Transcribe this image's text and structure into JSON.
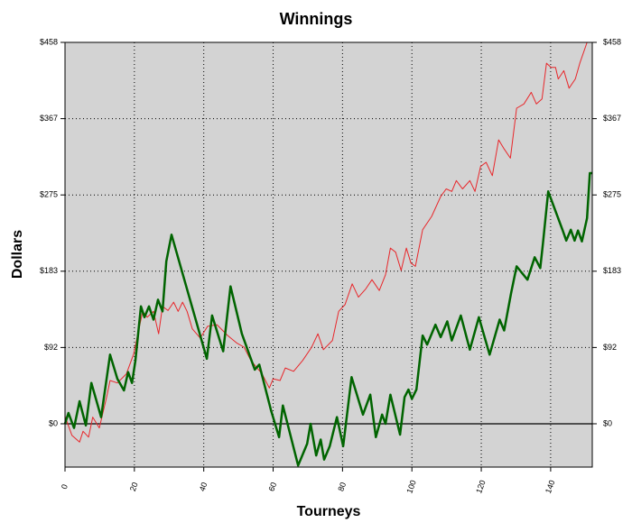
{
  "chart_data": {
    "type": "line",
    "title": "Winnings",
    "x_label": "Tourneys",
    "y_label": "Dollars",
    "xlim": [
      0,
      152
    ],
    "xticks": [
      0,
      20,
      40,
      60,
      80,
      100,
      120,
      140
    ],
    "ylim": [
      -52,
      458
    ],
    "yticks": [
      {
        "value": 0,
        "label": "$0"
      },
      {
        "value": 91.6,
        "label": "$92"
      },
      {
        "value": 183.2,
        "label": "$183"
      },
      {
        "value": 274.8,
        "label": "$275"
      },
      {
        "value": 366.4,
        "label": "$367"
      },
      {
        "value": 458,
        "label": "$458"
      }
    ],
    "grid": true,
    "background": "#d3d3d3",
    "series": [
      {
        "color": "#e8262a",
        "width": 1,
        "x": [
          0,
          2,
          4.2,
          5.2,
          6.8,
          8,
          9.9,
          12,
          13,
          15.1,
          17.7,
          19.8,
          21,
          22.4,
          23.7,
          25.5,
          27,
          28.1,
          29.7,
          31.3,
          32.6,
          33.9,
          35.2,
          36.7,
          39,
          41.1,
          43.8,
          46.9,
          49.5,
          51.6,
          53.6,
          56.8,
          58.9,
          60,
          62,
          63.5,
          65.9,
          68.5,
          71.1,
          72.9,
          74.5,
          77.1,
          78.9,
          80.7,
          82.8,
          84.6,
          86.7,
          88.5,
          90.6,
          92.4,
          93.8,
          95.3,
          96.9,
          98.4,
          99.7,
          101,
          103.1,
          105.7,
          108.3,
          109.9,
          111.5,
          112.8,
          114.6,
          116.7,
          118.2,
          119.8,
          121.4,
          123.2,
          125,
          126.6,
          128.4,
          130.2,
          132.3,
          134.4,
          135.9,
          137.5,
          138.8,
          140.1,
          141.4,
          142.2,
          143.8,
          145.3,
          147.1,
          148.4,
          150.5,
          152
        ],
        "values": [
          9,
          -14,
          -22,
          -9,
          -16,
          8,
          -5,
          32,
          52,
          49,
          60,
          84,
          108,
          135,
          128,
          135,
          108,
          141,
          136,
          146,
          135,
          146,
          135,
          114,
          103,
          117,
          119,
          106,
          97,
          92,
          76,
          60,
          43,
          54,
          52,
          67,
          63,
          76,
          92,
          108,
          89,
          100,
          135,
          143,
          168,
          152,
          162,
          173,
          160,
          179,
          211,
          206,
          184,
          211,
          193,
          189,
          233,
          249,
          273,
          282,
          279,
          292,
          282,
          292,
          279,
          309,
          314,
          298,
          341,
          330,
          319,
          379,
          384,
          398,
          384,
          390,
          433,
          428,
          428,
          414,
          424,
          403,
          414,
          433,
          458,
          458
        ]
      },
      {
        "color": "#006400",
        "width": 2.5,
        "x": [
          0,
          1,
          2.6,
          4.2,
          6,
          7.6,
          10.4,
          13,
          15.1,
          17,
          18.2,
          19.3,
          20.3,
          21.9,
          22.9,
          24.2,
          25.5,
          26.8,
          28.1,
          29.2,
          30.7,
          40.9,
          42.4,
          45.6,
          47.7,
          51,
          54.7,
          56,
          59.4,
          61.7,
          62.8,
          67.2,
          69.8,
          70.8,
          72.4,
          73.7,
          74.7,
          76.3,
          78.4,
          80.2,
          82.6,
          85.9,
          88,
          89.6,
          91.4,
          92.4,
          93.8,
          96.6,
          97.9,
          99,
          100,
          101.3,
          103.1,
          104.4,
          106.8,
          108.3,
          110.2,
          111.5,
          114.1,
          116.7,
          119.3,
          122.4,
          125.3,
          126.6,
          128.6,
          130.2,
          133.3,
          135.4,
          137,
          137.8,
          139.3,
          143.5,
          144.5,
          145.8,
          146.9,
          147.9,
          149,
          150.5,
          151.3,
          152
        ],
        "values": [
          0,
          13,
          -5,
          27,
          -2,
          49,
          8,
          83,
          54,
          40,
          62,
          49,
          76,
          141,
          128,
          141,
          125,
          149,
          135,
          195,
          227,
          78,
          130,
          87,
          165,
          108,
          65,
          71,
          16,
          -16,
          22,
          -50,
          -24,
          0,
          -38,
          -19,
          -43,
          -27,
          8,
          -27,
          56,
          11,
          35,
          -16,
          11,
          0,
          35,
          -13,
          32,
          41,
          30,
          41,
          106,
          95,
          119,
          104,
          123,
          100,
          130,
          89,
          128,
          83,
          125,
          112,
          157,
          189,
          173,
          200,
          187,
          217,
          279,
          232,
          220,
          233,
          220,
          232,
          219,
          247,
          301,
          301
        ]
      }
    ]
  }
}
